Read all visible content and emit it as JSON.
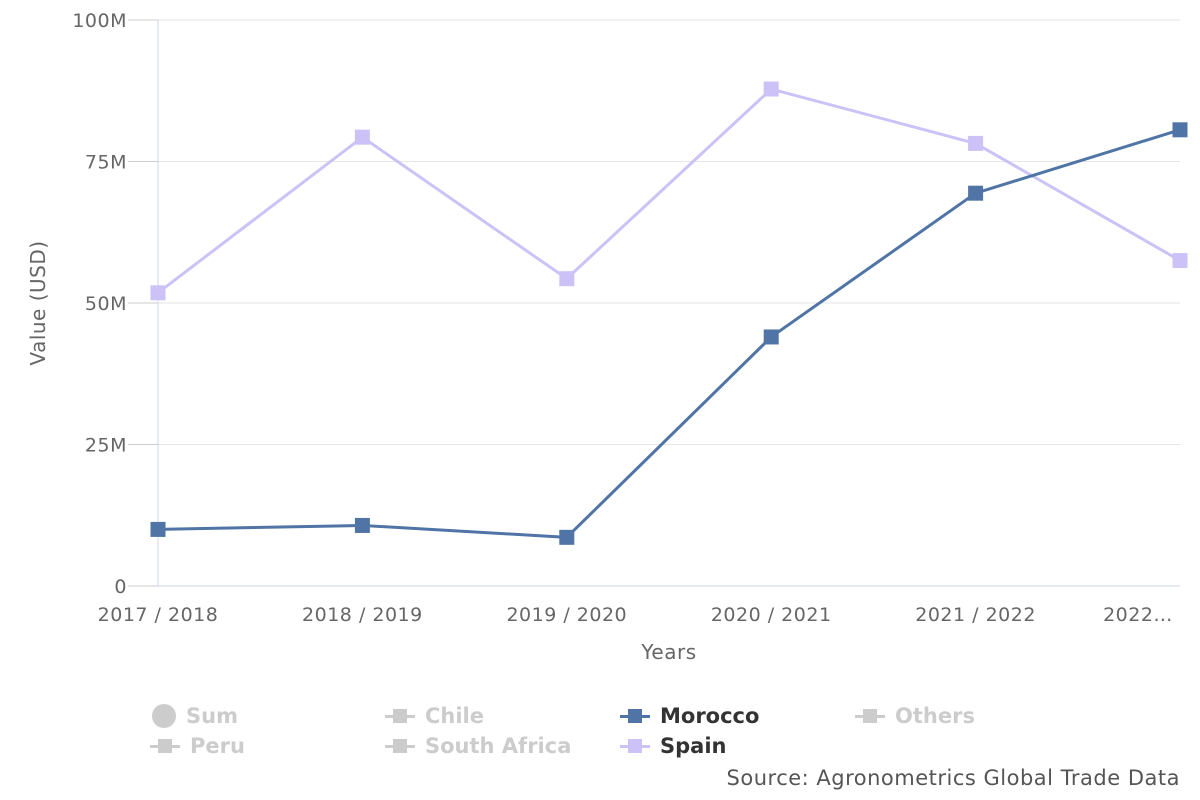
{
  "chart_data": {
    "type": "line",
    "categories": [
      "2017 / 2018",
      "2018 / 2019",
      "2019 / 2020",
      "2020 / 2021",
      "2021 / 2022",
      "2022…"
    ],
    "xlabel": "Years",
    "ylabel": "Value (USD)",
    "ylim": [
      0,
      100000000
    ],
    "yticks": [
      0,
      25000000,
      50000000,
      75000000,
      100000000
    ],
    "ytick_labels": [
      "0",
      "25M",
      "50M",
      "75M",
      "100M"
    ],
    "grid": true,
    "series": [
      {
        "name": "Morocco",
        "color": "#4f74a5",
        "values": [
          10000000,
          10700000,
          8600000,
          44000000,
          69400000,
          80600000
        ]
      },
      {
        "name": "Spain",
        "color": "#cdc2f7",
        "values": [
          51800000,
          79300000,
          54300000,
          87800000,
          78200000,
          57500000
        ]
      }
    ],
    "legend": {
      "placement": "bottom",
      "items": [
        {
          "label": "Sum",
          "symbol": "circle",
          "visible": false
        },
        {
          "label": "Chile",
          "symbol": "line-square",
          "visible": false
        },
        {
          "label": "Morocco",
          "symbol": "line-square",
          "visible": true,
          "color": "#4f74a5"
        },
        {
          "label": "Others",
          "symbol": "line-square",
          "visible": false
        },
        {
          "label": "Peru",
          "symbol": "line-square",
          "visible": false
        },
        {
          "label": "South Africa",
          "symbol": "line-square",
          "visible": false
        },
        {
          "label": "Spain",
          "symbol": "line-square",
          "visible": true,
          "color": "#cdc2f7"
        }
      ]
    },
    "source": "Source: Agronometrics Global Trade Data"
  }
}
